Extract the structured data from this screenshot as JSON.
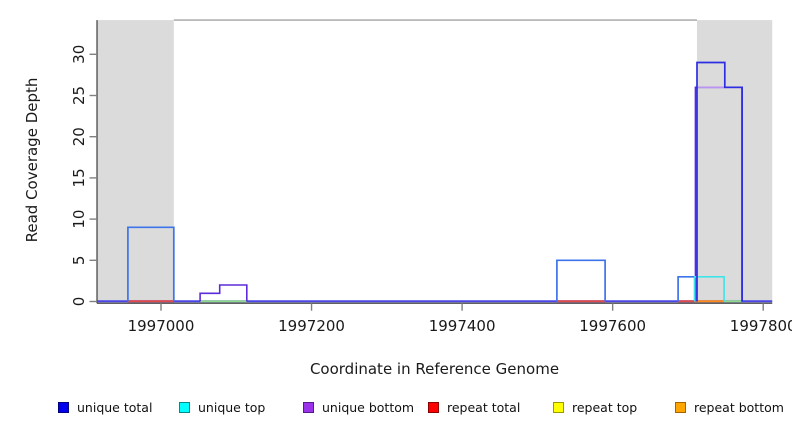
{
  "chart_data": {
    "type": "line",
    "subtype": "step-coverage-plot",
    "title": "",
    "xlabel": "Coordinate in Reference Genome",
    "ylabel": "Read Coverage Depth",
    "x_ticks": [
      1997000,
      1997200,
      1997400,
      1997600,
      1997800
    ],
    "x_tick_labels": [
      "1997000",
      "1997200",
      "1997400",
      "1997600",
      "1997800"
    ],
    "y_ticks": [
      0,
      5,
      10,
      15,
      20,
      25,
      30
    ],
    "y_tick_labels": [
      "0",
      "5",
      "10",
      "15",
      "20",
      "25",
      "30"
    ],
    "xlim": [
      1996915,
      1997812
    ],
    "ylim": [
      0,
      34.15
    ],
    "grid": "off",
    "legend_position": "bottom",
    "colors": {
      "background": "#ffffff",
      "shading": "#DBDBDB",
      "top_line": "#A3A3A3",
      "axis": "#4a4a4a",
      "tick": "#808080",
      "text": "#1a1a1a"
    },
    "shaded_regions": [
      {
        "name": "repeat-region-left",
        "from": 1996915,
        "to": 1997017,
        "color": "#DBDBDB"
      },
      {
        "name": "repeat-region-right",
        "from": 1997712,
        "to": 1997812,
        "color": "#DBDBDB"
      }
    ],
    "top_line": {
      "from": 1997017,
      "to": 1997712,
      "depth": 34.15,
      "color": "#A3A3A3"
    },
    "zero_segments": [
      {
        "name": "zero-baseline",
        "color": "#4B45E7",
        "from": 1996915,
        "to": 1997812
      },
      {
        "name": "repeat-total-zero-1",
        "color": "#E04A4A",
        "from": 1996956,
        "to": 1997017
      },
      {
        "name": "top-strand-zero-1",
        "color": "#8FD98F",
        "from": 1997052,
        "to": 1997114
      },
      {
        "name": "repeat-total-zero-2",
        "color": "#E04A4A",
        "from": 1997526,
        "to": 1997590
      },
      {
        "name": "repeat-total-zero-3",
        "color": "#E04A4A",
        "from": 1997687,
        "to": 1997709
      },
      {
        "name": "repeat-bottom-zero",
        "color": "#FF8C1A",
        "from": 1997709,
        "to": 1997748
      },
      {
        "name": "top-strand-zero-2",
        "color": "#8FD98F",
        "from": 1997748,
        "to": 1997771
      }
    ],
    "series": [
      {
        "name": "unique-bottom-steps",
        "color": "#5B2BDB",
        "width": 1.6,
        "points": [
          [
            1997052,
            0
          ],
          [
            1997052,
            1
          ],
          [
            1997078,
            1
          ],
          [
            1997078,
            2
          ],
          [
            1997114,
            2
          ],
          [
            1997114,
            0
          ]
        ]
      },
      {
        "name": "unique-bottom-peak",
        "color": "#5B2BDB",
        "width": 1.7,
        "points": [
          [
            1997710,
            0
          ],
          [
            1997710,
            26
          ],
          [
            1997772,
            26
          ],
          [
            1997772,
            0
          ]
        ]
      },
      {
        "name": "unique-bottom-peak-top-highlight",
        "color": "#B893F0",
        "width": 1.6,
        "points": [
          [
            1997712,
            26
          ],
          [
            1997749,
            26
          ]
        ]
      },
      {
        "name": "unique-total-box-depth9",
        "color": "#3D74EA",
        "width": 1.7,
        "points": [
          [
            1996956,
            0
          ],
          [
            1996956,
            9
          ],
          [
            1997017,
            9
          ],
          [
            1997017,
            0
          ]
        ]
      },
      {
        "name": "unique-total-box-depth5",
        "color": "#3D74EA",
        "width": 1.7,
        "points": [
          [
            1997526,
            0
          ],
          [
            1997526,
            5
          ],
          [
            1997590,
            5
          ],
          [
            1997590,
            0
          ]
        ]
      },
      {
        "name": "unique-total-box-depth3",
        "color": "#3D74EA",
        "width": 1.7,
        "points": [
          [
            1997687,
            0
          ],
          [
            1997687,
            3
          ],
          [
            1997709,
            3
          ],
          [
            1997709,
            0
          ]
        ]
      },
      {
        "name": "unique-top-box-depth3",
        "color": "#3FE3E8",
        "width": 1.6,
        "points": [
          [
            1997709,
            0
          ],
          [
            1997709,
            3
          ],
          [
            1997748,
            3
          ],
          [
            1997748,
            0
          ]
        ]
      },
      {
        "name": "unique-total-peak",
        "color": "#2D2DE2",
        "width": 1.7,
        "points": [
          [
            1997712,
            0
          ],
          [
            1997712,
            29
          ],
          [
            1997749,
            29
          ],
          [
            1997749,
            26
          ],
          [
            1997772,
            26
          ],
          [
            1997772,
            0
          ]
        ]
      }
    ],
    "legend": {
      "items": [
        {
          "key": "unique-total",
          "label": "unique total",
          "fill": "#0000EE",
          "border": "#000080"
        },
        {
          "key": "unique-top",
          "label": "unique top",
          "fill": "#00FFFF",
          "border": "#008B8B"
        },
        {
          "key": "unique-bottom",
          "label": "unique bottom",
          "fill": "#9932EA",
          "border": "#551A8B"
        },
        {
          "key": "repeat-total",
          "label": "repeat total",
          "fill": "#FF0000",
          "border": "#8B0000"
        },
        {
          "key": "repeat-top",
          "label": "repeat top",
          "fill": "#FFFF00",
          "border": "#9B9B00"
        },
        {
          "key": "repeat-bottom",
          "label": "repeat bottom",
          "fill": "#FFA500",
          "border": "#A66400"
        }
      ]
    }
  }
}
